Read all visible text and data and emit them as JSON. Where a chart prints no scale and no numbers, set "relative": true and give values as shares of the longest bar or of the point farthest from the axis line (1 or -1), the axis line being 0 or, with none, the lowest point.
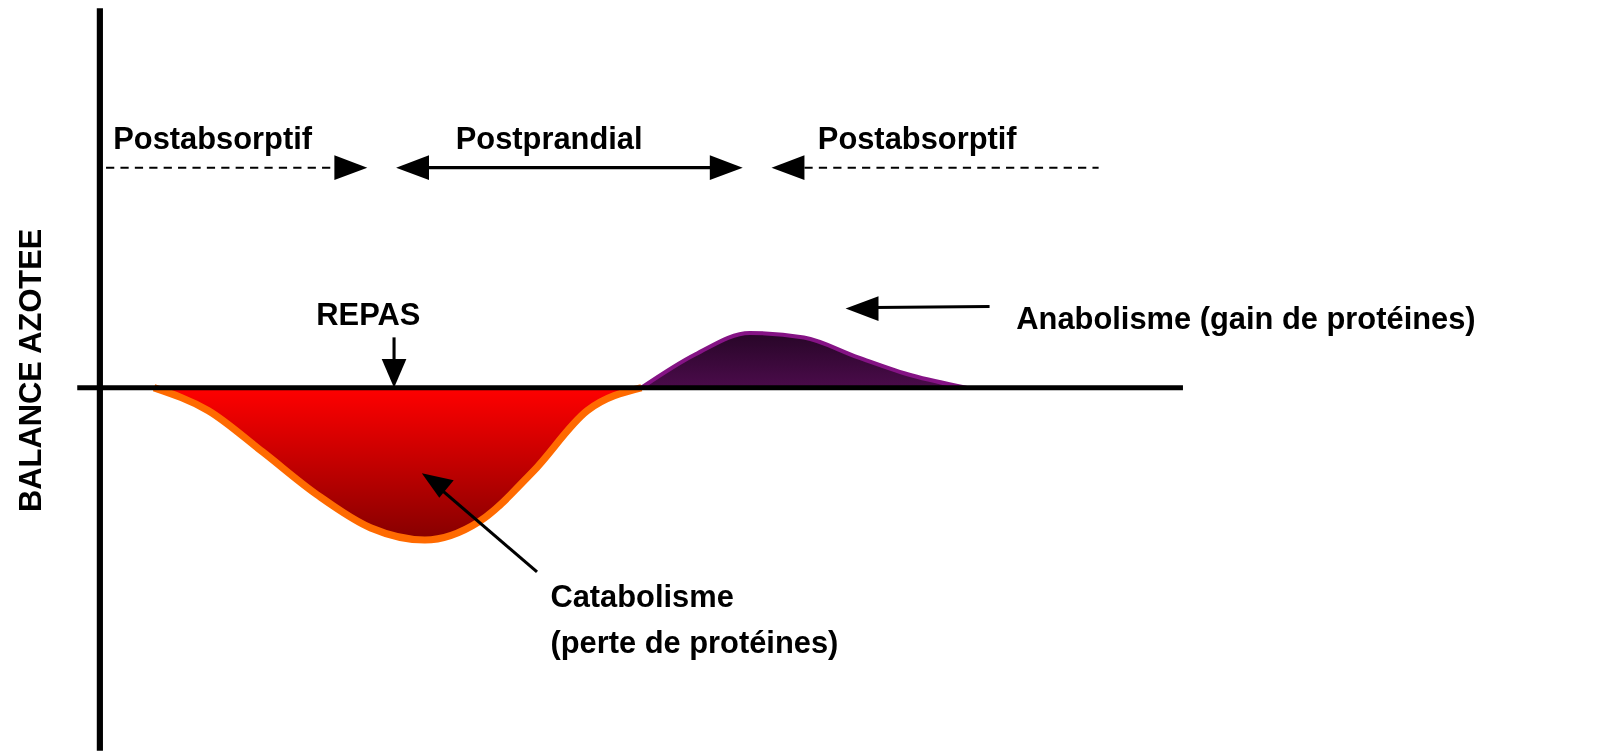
{
  "chart_data": {
    "type": "area",
    "relative": true,
    "ylabel": "BALANCE AZOTEE",
    "categories": [
      null,
      null,
      null,
      null,
      null,
      null,
      null,
      null,
      null,
      null,
      null,
      null,
      null,
      null,
      null,
      null,
      null,
      null,
      null,
      null,
      null
    ],
    "series": [
      {
        "color": "#ff0000",
        "values": [
          null,
          0,
          -0.15,
          -0.42,
          -0.7,
          -0.92,
          -1,
          -0.88,
          -0.55,
          -0.15,
          0,
          null,
          null,
          null,
          null,
          null,
          null,
          null,
          null,
          null,
          null
        ]
      },
      {
        "color": "#4b0b4b",
        "values": [
          null,
          null,
          null,
          null,
          null,
          null,
          null,
          null,
          null,
          null,
          0,
          0.22,
          0.36,
          0.33,
          0.2,
          0.08,
          0,
          null,
          null,
          null,
          null
        ]
      }
    ],
    "annotations": [
      "Postabsorptif",
      "Postprandial",
      "Postabsorptif",
      "REPAS",
      "Anabolisme (gain de protéines)",
      "Catabolisme\n(perte de protéines)"
    ]
  }
}
